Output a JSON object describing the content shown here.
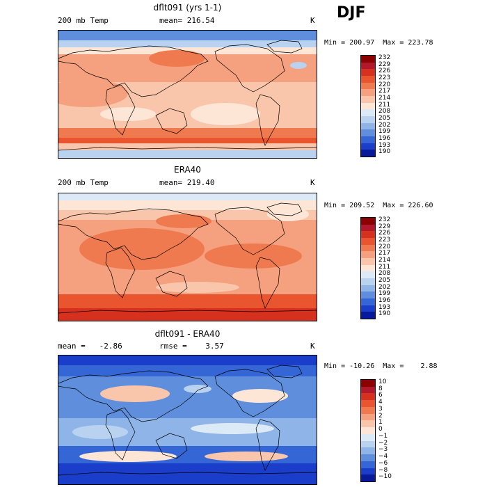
{
  "season_label": "DJF",
  "panels": [
    {
      "id": "model",
      "title": "dflt091 (yrs 1-1)",
      "left_label": "200 mb Temp",
      "center_label": "mean= 216.54",
      "units": "K",
      "stats": "Min = 200.97  Max = 223.78",
      "colorbar_levels": [
        "232",
        "229",
        "226",
        "223",
        "220",
        "217",
        "214",
        "211",
        "208",
        "205",
        "202",
        "199",
        "196",
        "193",
        "190"
      ]
    },
    {
      "id": "obs",
      "title": "ERA40",
      "left_label": "200 mb Temp",
      "center_label": "mean= 219.40",
      "units": "K",
      "stats": "Min = 209.52  Max = 226.60",
      "colorbar_levels": [
        "232",
        "229",
        "226",
        "223",
        "220",
        "217",
        "214",
        "211",
        "208",
        "205",
        "202",
        "199",
        "196",
        "193",
        "190"
      ]
    },
    {
      "id": "diff",
      "title": "dflt091 - ERA40",
      "left_label": "mean =   -2.86",
      "center_label": "rmse =    3.57",
      "units": "K",
      "stats": "Min = -10.26  Max =    2.88",
      "colorbar_levels": [
        "10",
        "8",
        "6",
        "4",
        "3",
        "2",
        "1",
        "0",
        "−1",
        "−2",
        "−3",
        "−4",
        "−6",
        "−8",
        "−10"
      ]
    }
  ],
  "colors": {
    "scale": [
      "#8b0000",
      "#b2182b",
      "#d6301f",
      "#e8552e",
      "#f07a4f",
      "#f5a07e",
      "#f9c6ab",
      "#fde6d6",
      "#dce9f7",
      "#b8d2f0",
      "#8fb4e8",
      "#5f8fdc",
      "#3566d6",
      "#1a3ec9",
      "#061a9a"
    ]
  }
}
